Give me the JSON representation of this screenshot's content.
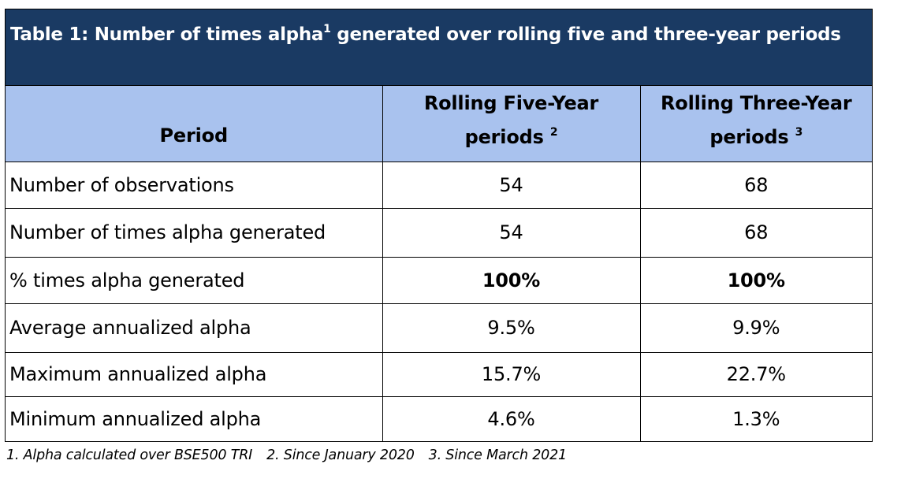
{
  "title": {
    "before_sup": "Table 1: Number of times alpha",
    "sup": "1",
    "after_sup": " generated over rolling five and three-year periods"
  },
  "headers": {
    "period": "Period",
    "five_year": "Rolling Five-Year periods",
    "five_year_sup": "2",
    "three_year": "Rolling Three-Year periods",
    "three_year_sup": "3"
  },
  "rows": [
    {
      "label": "Number of observations",
      "five": "54",
      "three": "68",
      "bold": false
    },
    {
      "label": "Number of times alpha generated",
      "five": "54",
      "three": "68",
      "bold": false
    },
    {
      "label": "% times alpha generated",
      "five": "100%",
      "three": "100%",
      "bold": true
    },
    {
      "label": "Average annualized alpha",
      "five": "9.5%",
      "three": "9.9%",
      "bold": false
    },
    {
      "label": "Maximum annualized alpha",
      "five": "15.7%",
      "three": "22.7%",
      "bold": false
    },
    {
      "label": "Minimum annualized alpha",
      "five": "4.6%",
      "three": "1.3%",
      "bold": false
    }
  ],
  "footnotes": [
    "1. Alpha calculated over BSE500 TRI",
    "2. Since January 2020",
    "3. Since March 2021"
  ],
  "colors": {
    "title_bg": "#1a3a63",
    "header_bg": "#a9c2ee"
  }
}
